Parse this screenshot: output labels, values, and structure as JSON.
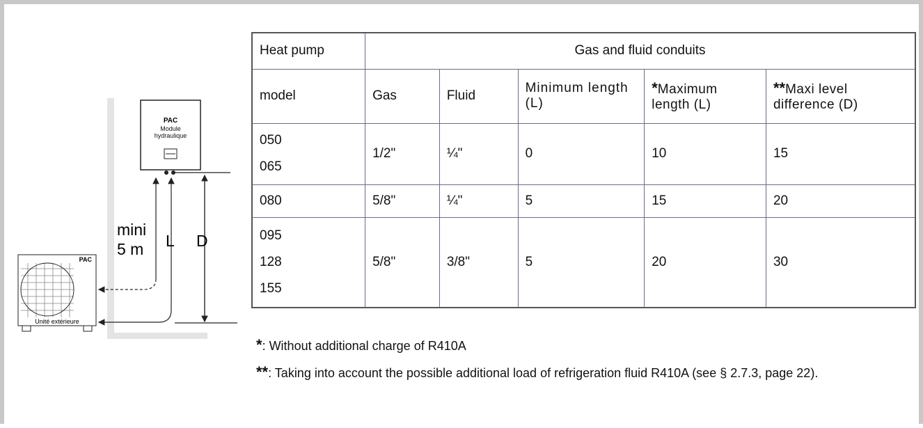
{
  "diagram": {
    "indoor_unit": {
      "title": "PAC",
      "label": "Module hydraulique"
    },
    "outdoor_unit": {
      "title": "PAC",
      "label": "Unité extérieure"
    },
    "labels": {
      "mini": "mini",
      "distance": "5 m",
      "length": "L",
      "difference": "D"
    }
  },
  "table": {
    "header": {
      "model": "Heat pump",
      "group": "Gas and fluid conduits"
    },
    "subheader": [
      {
        "text": "model"
      },
      {
        "text": "Gas"
      },
      {
        "text": "Fluid"
      },
      {
        "text": "Minimum length (L)"
      },
      {
        "mark": "*",
        "text": "Maximum length (L)"
      },
      {
        "mark": "**",
        "text": "Maxi level difference (D)"
      }
    ],
    "rows": [
      {
        "models": [
          "050",
          "065"
        ],
        "cells": [
          "1/2\"",
          "¼\"",
          "0",
          "10",
          "15"
        ]
      },
      {
        "models": [
          "080"
        ],
        "cells": [
          "5/8\"",
          "¼\"",
          "5",
          "15",
          "20"
        ]
      },
      {
        "models": [
          "095",
          "128",
          "155"
        ],
        "cells": [
          "5/8\"",
          "3/8\"",
          "5",
          "20",
          "30"
        ]
      }
    ]
  },
  "notes": [
    {
      "mark": "*",
      "text": ": Without additional charge of R410A"
    },
    {
      "mark": "**",
      "text": ": Taking into account the possible additional load of refrigeration fluid R410A (see § 2.7.3, page 22)."
    }
  ]
}
